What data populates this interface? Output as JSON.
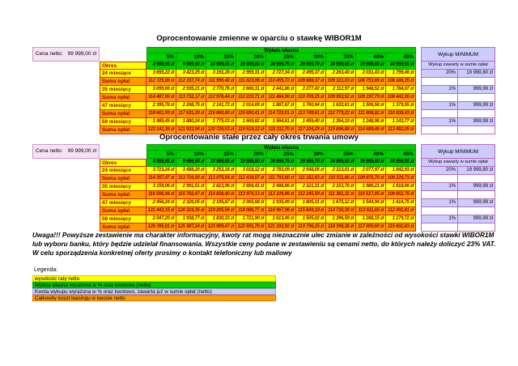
{
  "tables": [
    {
      "id": "variable",
      "title": "Oprocentowanie zmienne w oparciu o stawkę WIBOR1M",
      "cena_netto": {
        "label": "Cena netto:",
        "value": "99 999,00 zł"
      },
      "wplata_header": "Wpłata własna",
      "percents": [
        "5%",
        "10%",
        "15%",
        "20%",
        "25%",
        "30%",
        "35%",
        "40%",
        "45%"
      ],
      "wykup": {
        "header": "Wykup MINIMUM",
        "subheader": "Wykup zawarty w sumie opłat"
      },
      "rows": [
        {
          "label": "Okres",
          "style": "green",
          "values": [
            "4 999,95 zł",
            "9 999,90 zł",
            "14 999,85 zł",
            "19 999,80 zł",
            "24 999,75 zł",
            "29 999,70 zł",
            "34 999,65 zł",
            "39 999,60 zł",
            "44 999,55 zł"
          ]
        },
        {
          "label": "24 miesiące",
          "style": "rate",
          "wykup": [
            "20%",
            "19 999,80 zł"
          ],
          "values": [
            "3 655,22 zł",
            "3 423,25 zł",
            "3 191,28 zł",
            "2 959,31 zł",
            "2 727,34 zł",
            "2 495,37 zł",
            "2 263,40 zł",
            "2 031,43 zł",
            "1 799,46 zł"
          ]
        },
        {
          "label": "Suma opłat",
          "style": "sum",
          "wykup": [
            "",
            ""
          ],
          "values": [
            "112 725,08 zł",
            "112 157,74 zł",
            "111 590,40 zł",
            "111 023,06 zł",
            "110 455,72 zł",
            "109 888,37 zł",
            "109 321,03 zł",
            "108 753,69 zł",
            "108 186,35 zł"
          ]
        },
        {
          "label": "35 miesięcy",
          "style": "rate",
          "wykup": [
            "1%",
            "999,99 zł"
          ],
          "values": [
            "3 099,66 zł",
            "2 935,21 zł",
            "2 770,76 zł",
            "2 606,31 zł",
            "2 441,86 zł",
            "2 277,42 zł",
            "2 112,97 zł",
            "1 948,52 zł",
            "1 784,07 zł"
          ]
        },
        {
          "label": "Suma opłat",
          "style": "sum",
          "wykup": [
            "",
            ""
          ],
          "values": [
            "114 487,90 zł",
            "113 732,17 zł",
            "112 976,44 zł",
            "112 220,71 zł",
            "111 464,98 zł",
            "110 709,25 zł",
            "109 953,52 zł",
            "109 197,79 zł",
            "108 442,06 zł"
          ]
        },
        {
          "label": "47 miesięcy",
          "style": "rate",
          "wykup": [
            "1%",
            "999,99 zł"
          ],
          "values": [
            "2 395,78 zł",
            "2 268,75 zł",
            "2 141,72 zł",
            "2 014,69 zł",
            "1 887,67 zł",
            "1 760,64 zł",
            "1 633,61 zł",
            "1 506,58 zł",
            "1 379,55 zł"
          ]
        },
        {
          "label": "Suma opłat",
          "style": "sum",
          "wykup": [
            "",
            ""
          ],
          "values": [
            "118 601,59 zł",
            "117 631,20 zł",
            "116 660,80 zł",
            "115 690,41 zł",
            "114 720,01 zł",
            "113 749,61 zł",
            "112 779,22 zł",
            "111 808,82 zł",
            "110 838,43 zł"
          ]
        },
        {
          "label": "59 miesięcy",
          "style": "rate",
          "wykup": [
            "1%",
            "999,99 zł"
          ],
          "values": [
            "1 985,45 zł",
            "1 880,24 zł",
            "1 775,03 zł",
            "1 669,82 zł",
            "1 564,61 zł",
            "1 459,40 zł",
            "1 354,19 zł",
            "1 248,98 zł",
            "1 143,77 zł"
          ]
        },
        {
          "label": "Suma opłat",
          "style": "sum",
          "wykup": [
            "",
            ""
          ],
          "values": [
            "123 141,36 zł",
            "121 933,94 zł",
            "120 726,53 zł",
            "119 519,12 zł",
            "118 311,70 zł",
            "117 104,29 zł",
            "115 896,88 zł",
            "114 689,46 zł",
            "113 482,05 zł"
          ]
        }
      ]
    },
    {
      "id": "fixed",
      "title": "Oprocentowanie stałe przez cały okres trwania umowy",
      "cena_netto": {
        "label": "Cena netto:",
        "value": "99 999,00 zł"
      },
      "wplata_header": "Wpłata własna",
      "percents": [
        "5%",
        "10%",
        "15%",
        "20%",
        "25%",
        "30%",
        "35%",
        "40%",
        "45%"
      ],
      "wykup": {
        "header": "Wykup MINIMUM",
        "subheader": "Wykup zawarty w sumie opłat"
      },
      "rows": [
        {
          "label": "Okres",
          "style": "green",
          "values": [
            "4 999,95 zł",
            "9 999,90 zł",
            "14 999,85 zł",
            "19 999,80 zł",
            "24 999,75 zł",
            "29 999,70 zł",
            "34 999,65 zł",
            "39 999,60 zł",
            "44 999,55 zł"
          ]
        },
        {
          "label": "24 miesiące",
          "style": "rate",
          "wykup": [
            "20%",
            "19 999,80 zł"
          ],
          "values": [
            "3 723,24 zł",
            "3 488,20 zł",
            "3 253,16 zł",
            "3 018,12 zł",
            "2 783,09 zł",
            "2 548,05 zł",
            "2 313,01 zł",
            "2 077,97 zł",
            "1 842,93 zł"
          ]
        },
        {
          "label": "Suma opłat",
          "style": "sum",
          "wykup": [
            "",
            ""
          ],
          "values": [
            "114 357,47 zł",
            "113 716,50 zł",
            "113 075,54 zł",
            "112 434,57 zł",
            "111 793,60 zł",
            "111 152,63 zł",
            "110 511,66 zł",
            "109 870,70 zł",
            "109 229,73 zł"
          ]
        },
        {
          "label": "35 miesięcy",
          "style": "rate",
          "wykup": [
            "1%",
            "999,99 zł"
          ],
          "values": [
            "3 159,06 zł",
            "2 991,51 zł",
            "2 823,96 zł",
            "2 656,41 zł",
            "2 488,86 zł",
            "2 321,31 zł",
            "2 153,76 zł",
            "1 986,21 zł",
            "1 818,66 zł"
          ]
        },
        {
          "label": "Suma opłat",
          "style": "sum",
          "wykup": [
            "",
            ""
          ],
          "values": [
            "116 566,94 zł",
            "115 702,67 zł",
            "114 838,40 zł",
            "113 974,13 zł",
            "113 109,86 zł",
            "112 245,59 zł",
            "111 381,32 zł",
            "110 517,05 zł",
            "109 652,78 zł"
          ]
        },
        {
          "label": "47 miesięcy",
          "style": "rate",
          "wykup": [
            "1%",
            "999,99 zł"
          ],
          "values": [
            "2 456,24 zł",
            "2 326,05 zł",
            "2 195,87 zł",
            "2 065,68 zł",
            "1 935,49 zł",
            "1 805,31 zł",
            "1 675,12 zł",
            "1 544,94 zł",
            "1 414,75 zł"
          ]
        },
        {
          "label": "Suma opłat",
          "style": "sum",
          "wykup": [
            "",
            ""
          ],
          "values": [
            "121 443,15 zł",
            "120 324,35 zł",
            "119 205,56 zł",
            "118 086,77 zł",
            "116 967,98 zł",
            "115 849,19 zł",
            "114 730,39 zł",
            "113 611,60 zł",
            "112 492,81 zł"
          ]
        },
        {
          "label": "59 miesięcy",
          "style": "rate",
          "wykup": [
            "1%",
            "999,99 zł"
          ],
          "values": [
            "2 047,20 zł",
            "1 938,77 zł",
            "1 830,33 zł",
            "1 721,90 zł",
            "1 613,46 zł",
            "1 505,02 zł",
            "1 396,59 zł",
            "1 288,15 zł",
            "1 179,72 zł"
          ]
        },
        {
          "label": "Suma opłat",
          "style": "sum",
          "wykup": [
            "",
            ""
          ],
          "values": [
            "126 785,01 zł",
            "125 387,24 zł",
            "123 989,47 zł",
            "122 591,70 zł",
            "121 193,92 zł",
            "119 796,15 zł",
            "118 398,38 zł",
            "117 000,60 zł",
            "115 602,83 zł"
          ]
        }
      ]
    }
  ],
  "note": "Uwaga!!! Powyższe zestawienie ma charakter informacyjny, kwoty rat mogą nieznacznie ulec zmianie w zależności od wysokości stawki WIBOR1M lub wyboru banku, który będzie udzielał finansowania. Wszystkie ceny podane w zestawieniu są cenami netto, do których należy doliczyć 23% VAT. W celu sporządzenia konkretnej oferty prosimy o kontakt telefoniczny lub mailowy",
  "legend": {
    "label": "Legenda:",
    "items": [
      {
        "text": "wysokość raty netto",
        "color": "#ffff00",
        "border": "#d8cc00"
      },
      {
        "text": "Wpłata własna wyrażona w % oraz kwotowo (netto)",
        "color": "#00cc00",
        "border": "#00a000"
      },
      {
        "text": "Kwota wykupu wyrażona w % oraz kwotowo, zawarta już w sumie opłat (netto)",
        "color": "#ccccff",
        "border": "#9f9fd8"
      },
      {
        "text": "Całkowity koszt leasingu w kwocie netto",
        "color": "#ff9900",
        "border": "#d87800"
      }
    ]
  },
  "colors": {
    "own_payment_green": "#00cc00",
    "installment_yellow": "#ffff00",
    "total_cost_orange": "#ff9900",
    "buyback_lavender": "#ccccff",
    "net_price_pink": "#f6e2f2"
  }
}
